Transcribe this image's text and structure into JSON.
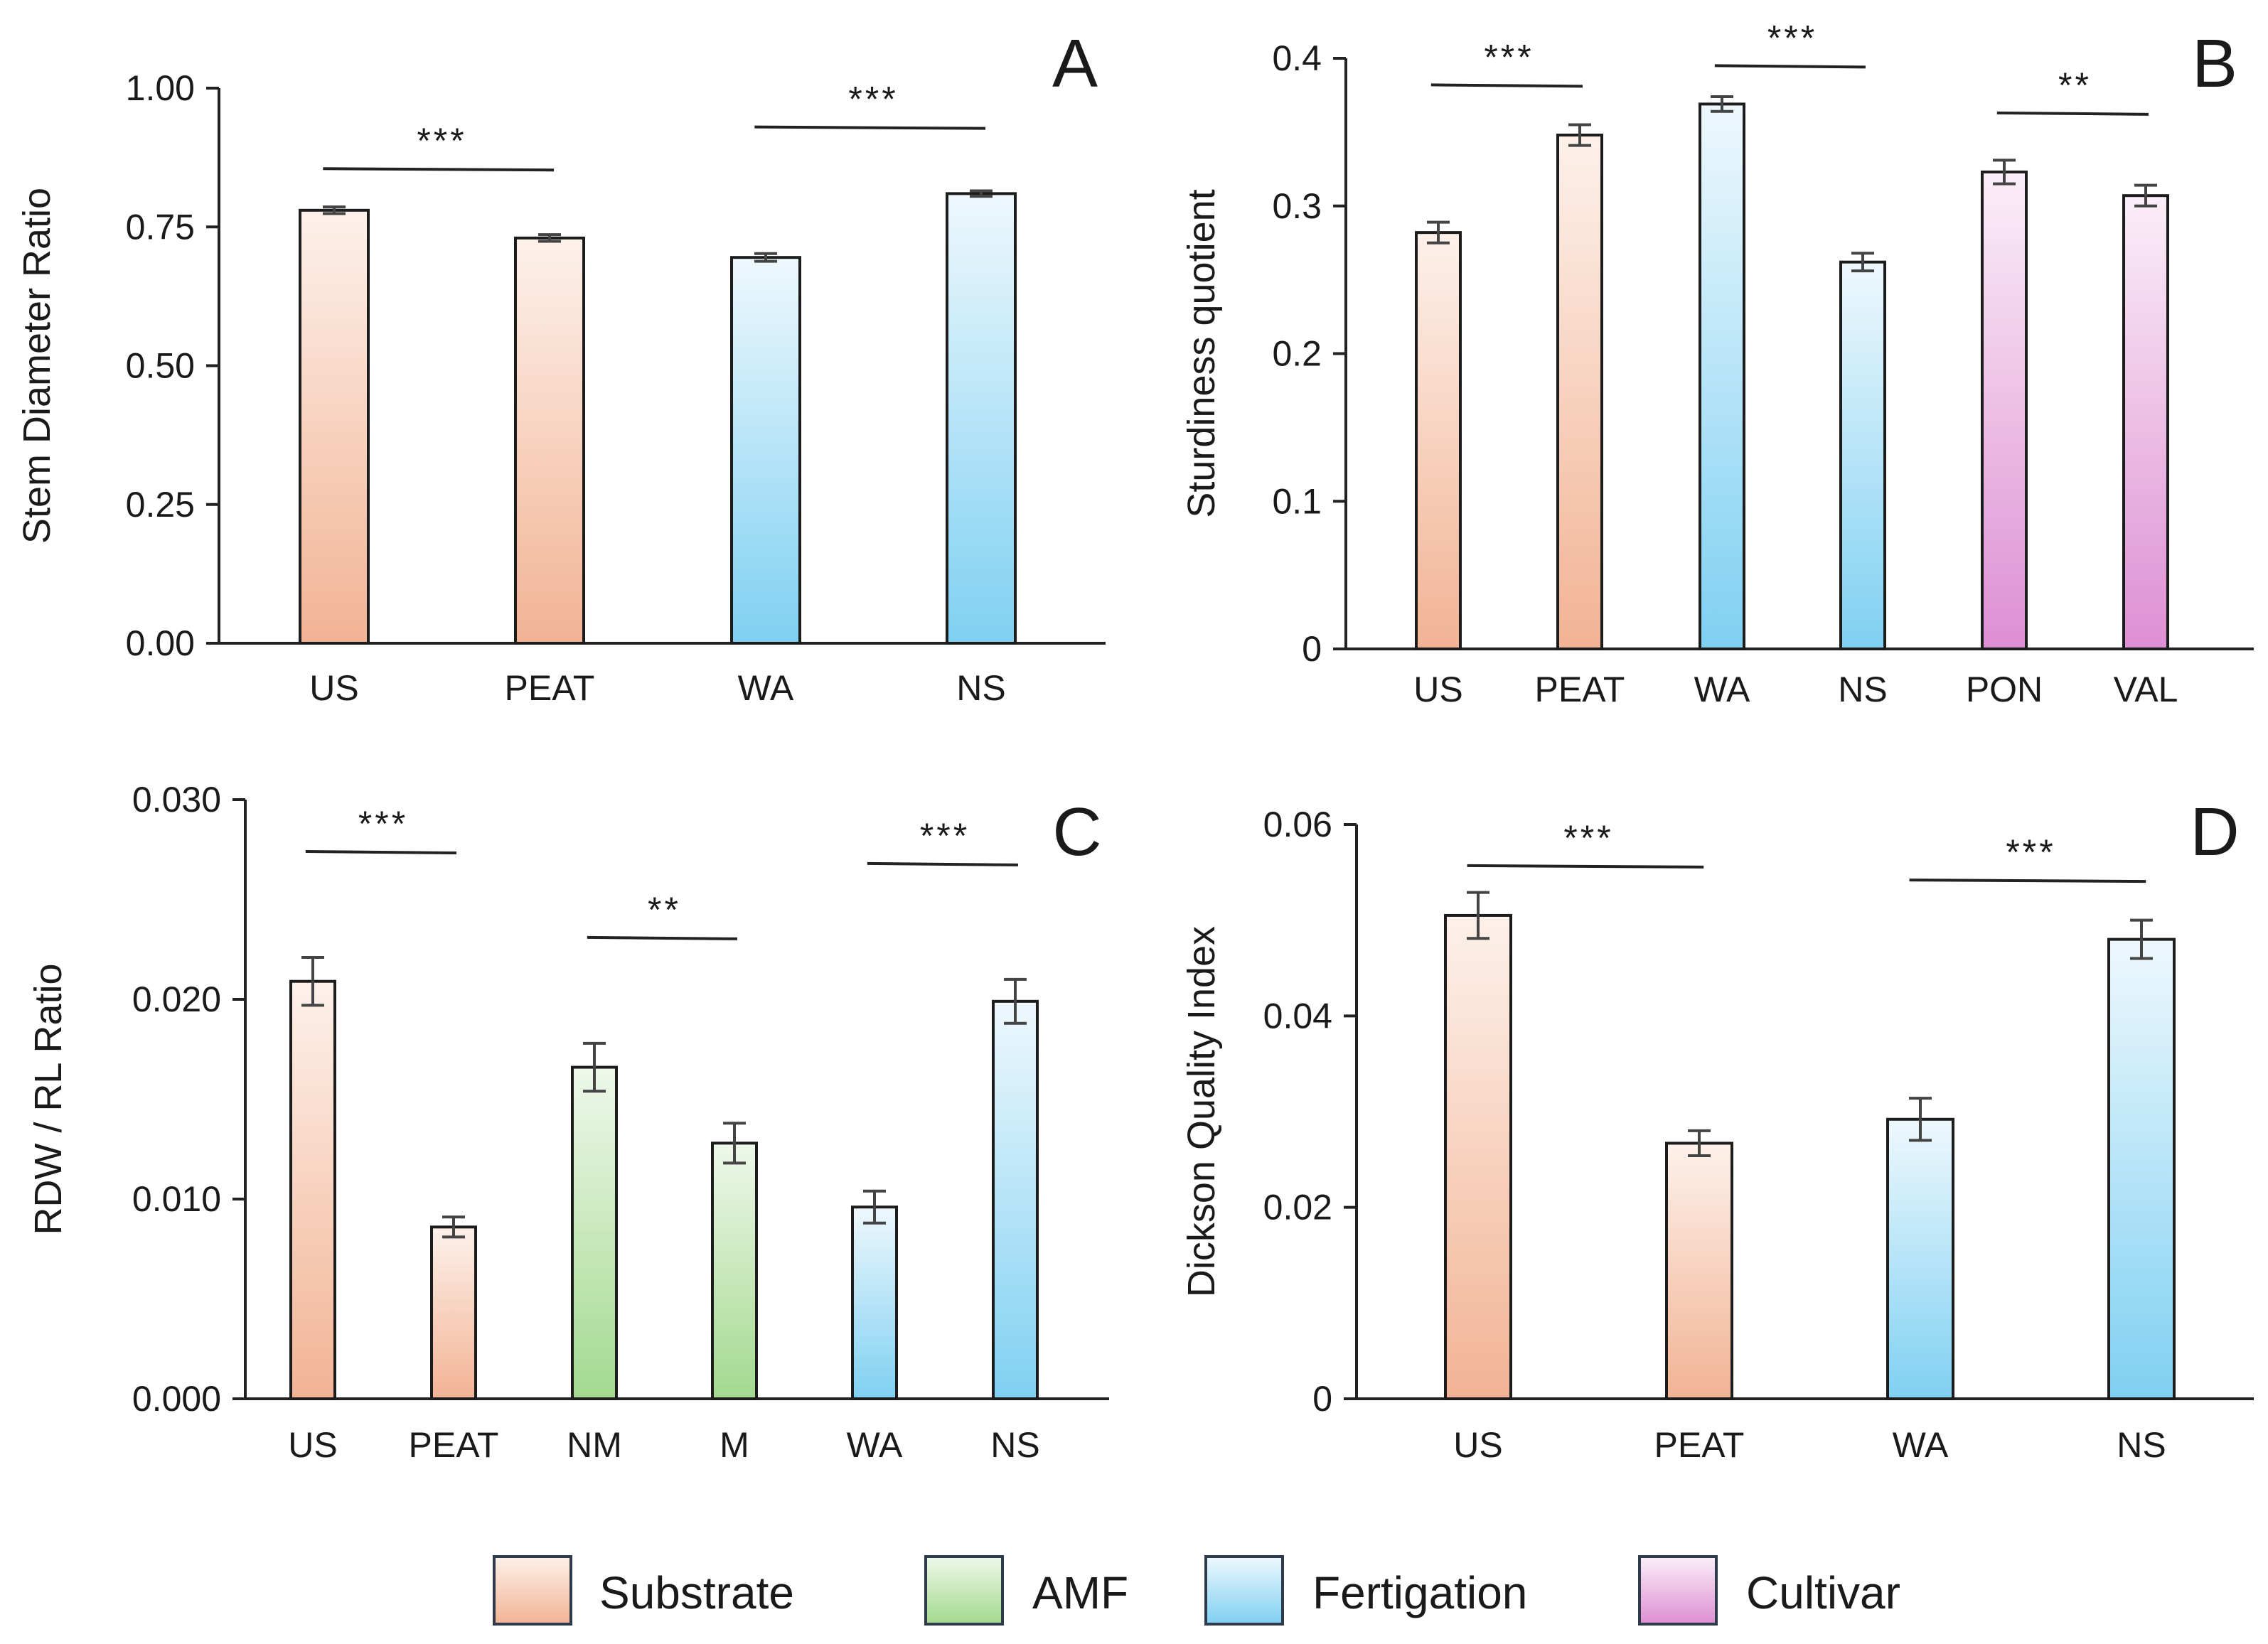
{
  "chart_data": [
    {
      "panel": "A",
      "type": "bar",
      "ylabel": "Stem Diameter Ratio",
      "ylim": [
        0,
        1
      ],
      "yticks": [
        0,
        0.25,
        0.5,
        0.75,
        1
      ],
      "ytick_labels": [
        "0.00",
        "0.25",
        "0.50",
        "0.75",
        "1.00"
      ],
      "categories": [
        "US",
        "PEAT",
        "WA",
        "NS"
      ],
      "values": [
        0.78,
        0.73,
        0.695,
        0.81
      ],
      "errors": [
        0.006,
        0.006,
        0.007,
        0.005
      ],
      "groups": [
        "Substrate",
        "Substrate",
        "Fertigation",
        "Fertigation"
      ],
      "significance": [
        {
          "from": 0,
          "to": 1,
          "label": "***",
          "y": 0.855
        },
        {
          "from": 2,
          "to": 3,
          "label": "***",
          "y": 0.93
        }
      ]
    },
    {
      "panel": "B",
      "type": "bar",
      "ylabel": "Sturdiness  quotient",
      "ylim": [
        0,
        0.4
      ],
      "yticks": [
        0,
        0.1,
        0.2,
        0.3,
        0.4
      ],
      "ytick_labels": [
        "0",
        "0.1",
        "0.2",
        "0.3",
        "0.4"
      ],
      "categories": [
        "US",
        "PEAT",
        "WA",
        "NS",
        "PON",
        "VAL"
      ],
      "values": [
        0.282,
        0.348,
        0.369,
        0.262,
        0.323,
        0.307
      ],
      "errors": [
        0.007,
        0.007,
        0.005,
        0.006,
        0.008,
        0.007
      ],
      "groups": [
        "Substrate",
        "Substrate",
        "Fertigation",
        "Fertigation",
        "Cultivar",
        "Cultivar"
      ],
      "significance": [
        {
          "from": 0,
          "to": 1,
          "label": "***",
          "y": 0.382
        },
        {
          "from": 2,
          "to": 3,
          "label": "***",
          "y": 0.395
        },
        {
          "from": 4,
          "to": 5,
          "label": "**",
          "y": 0.363
        }
      ]
    },
    {
      "panel": "C",
      "type": "bar",
      "ylabel": "RDW / RL Ratio",
      "ylim": [
        0,
        0.03
      ],
      "yticks": [
        0,
        0.01,
        0.02,
        0.03
      ],
      "ytick_labels": [
        "0.000",
        "0.010",
        "0.020",
        "0.030"
      ],
      "categories": [
        "US",
        "PEAT",
        "NM",
        "M",
        "WA",
        "NS"
      ],
      "values": [
        0.0209,
        0.0086,
        0.0166,
        0.0128,
        0.0096,
        0.0199
      ],
      "errors": [
        0.0012,
        0.0005,
        0.0012,
        0.001,
        0.0008,
        0.0011
      ],
      "groups": [
        "Substrate",
        "Substrate",
        "AMF",
        "AMF",
        "Fertigation",
        "Fertigation"
      ],
      "significance": [
        {
          "from": 0,
          "to": 1,
          "label": "***",
          "y": 0.0274
        },
        {
          "from": 2,
          "to": 3,
          "label": "**",
          "y": 0.0231
        },
        {
          "from": 4,
          "to": 5,
          "label": "***",
          "y": 0.0268
        }
      ]
    },
    {
      "panel": "D",
      "type": "bar",
      "ylabel": "Dickson Quality Index",
      "ylim": [
        0,
        0.06
      ],
      "yticks": [
        0,
        0.02,
        0.04,
        0.06
      ],
      "ytick_labels": [
        "0",
        "0.02",
        "0.04",
        "0.06"
      ],
      "categories": [
        "US",
        "PEAT",
        "WA",
        "NS"
      ],
      "values": [
        0.0505,
        0.0267,
        0.0292,
        0.048
      ],
      "errors": [
        0.0024,
        0.0013,
        0.0022,
        0.002
      ],
      "groups": [
        "Substrate",
        "Substrate",
        "Fertigation",
        "Fertigation"
      ],
      "significance": [
        {
          "from": 0,
          "to": 1,
          "label": "***",
          "y": 0.0557
        },
        {
          "from": 2,
          "to": 3,
          "label": "***",
          "y": 0.0542
        }
      ]
    }
  ],
  "legend": [
    {
      "label": "Substrate",
      "color_top": "#fdf1ea",
      "color_bottom": "#f2b394"
    },
    {
      "label": "AMF",
      "color_top": "#eef8ea",
      "color_bottom": "#a3d98f"
    },
    {
      "label": "Fertigation",
      "color_top": "#eef8fd",
      "color_bottom": "#7fd0f2"
    },
    {
      "label": "Cultivar",
      "color_top": "#fbeef8",
      "color_bottom": "#dd8fd3"
    }
  ]
}
